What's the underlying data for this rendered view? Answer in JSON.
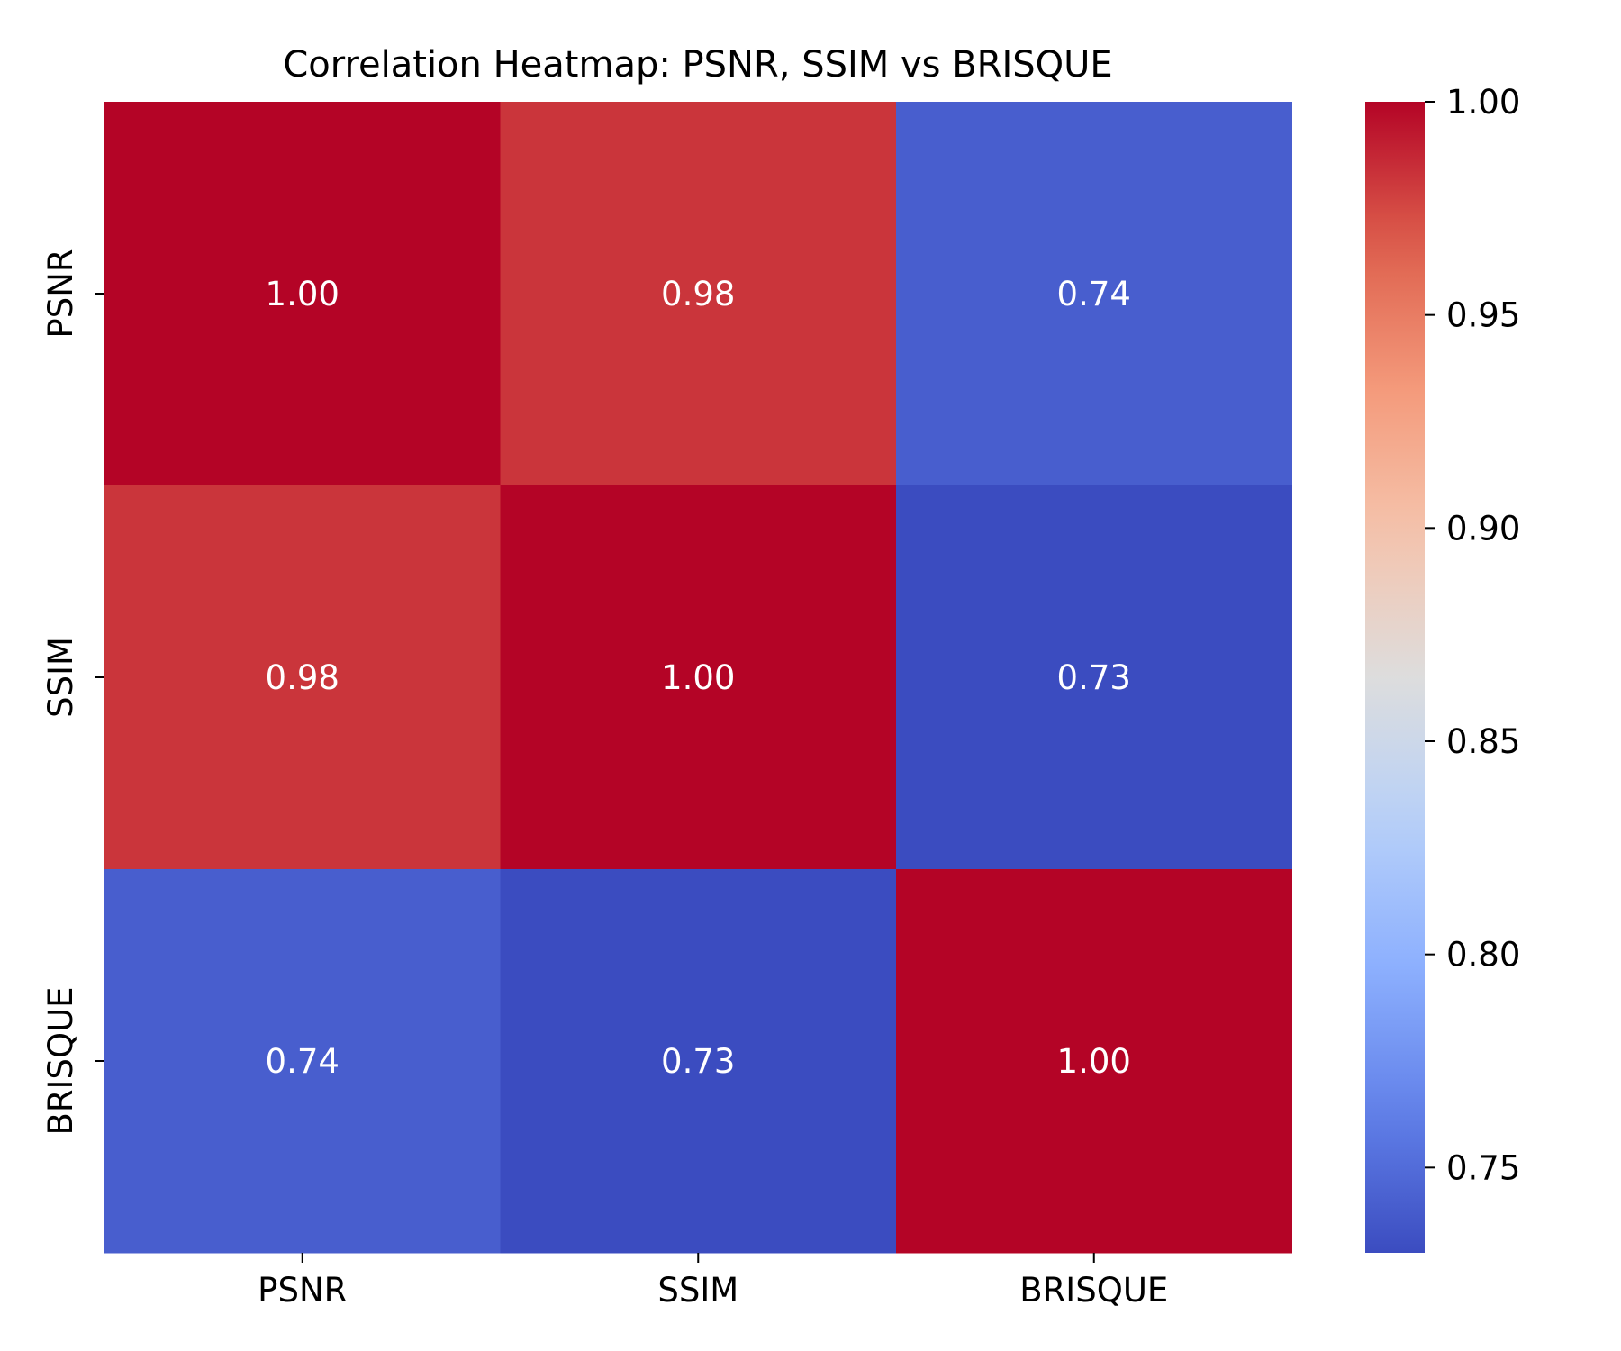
{
  "chart_data": {
    "type": "heatmap",
    "title": "Correlation Heatmap: PSNR, SSIM vs BRISQUE",
    "xlabel": "",
    "ylabel": "",
    "x_categories": [
      "PSNR",
      "SSIM",
      "BRISQUE"
    ],
    "y_categories": [
      "PSNR",
      "SSIM",
      "BRISQUE"
    ],
    "values": [
      [
        1.0,
        0.982,
        0.741
      ],
      [
        0.982,
        1.0,
        0.73
      ],
      [
        0.741,
        0.73,
        1.0
      ]
    ],
    "annotations": [
      [
        "1.00",
        "0.98",
        "0.74"
      ],
      [
        "0.98",
        "1.00",
        "0.73"
      ],
      [
        "0.74",
        "0.73",
        "1.00"
      ]
    ],
    "colormap": "coolwarm",
    "colorbar": {
      "range": [
        0.73,
        1.0
      ],
      "ticks": [
        0.75,
        0.8,
        0.85,
        0.9,
        0.95,
        1.0
      ],
      "tick_labels": [
        "0.75",
        "0.80",
        "0.85",
        "0.90",
        "0.95",
        "1.00"
      ],
      "placement": "right"
    },
    "annotation_color": "#ffffff",
    "grid": false
  }
}
